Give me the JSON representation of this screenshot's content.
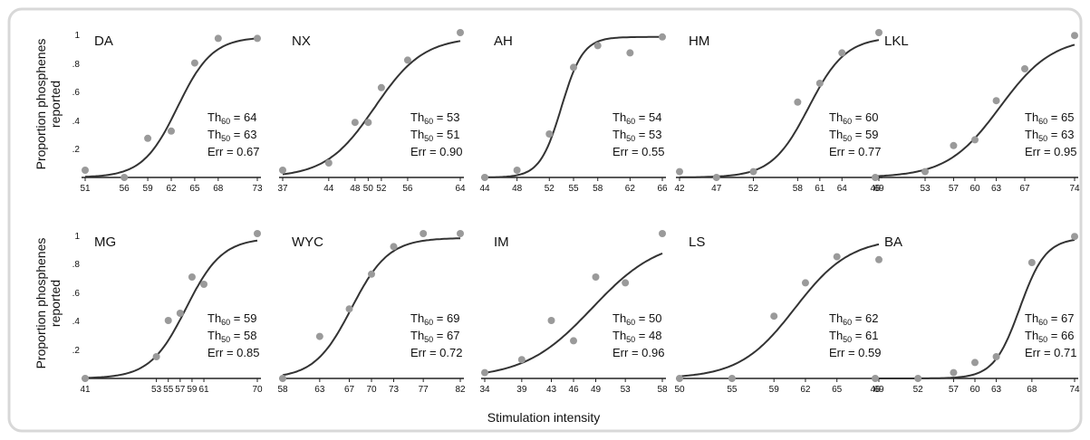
{
  "figure": {
    "y_axis_title_line1": "Proportion phosphenes",
    "y_axis_title_line2": "reported",
    "x_axis_title": "Stimulation intensity",
    "y_ticks": [
      "1",
      ".8",
      ".6",
      ".4",
      ".2"
    ],
    "colors": {
      "frame": "#d8d8d8",
      "curve": "#333333",
      "points": "#9a9a9a",
      "axis": "#222222"
    }
  },
  "chart_data": [
    {
      "type": "scatter",
      "subject": "DA",
      "xlim": [
        51,
        73
      ],
      "ylim": [
        0,
        1
      ],
      "x_ticks": [
        51,
        56,
        59,
        62,
        65,
        68,
        73
      ],
      "points": [
        [
          51,
          0.05
        ],
        [
          56,
          0.0
        ],
        [
          59,
          0.27
        ],
        [
          62,
          0.32
        ],
        [
          65,
          0.79
        ],
        [
          68,
          0.96
        ],
        [
          73,
          0.96
        ]
      ],
      "fit": {
        "midpoint": 62.8,
        "slope": 0.45
      },
      "th60": "64",
      "th50": "63",
      "err": "0.67"
    },
    {
      "type": "scatter",
      "subject": "NX",
      "xlim": [
        37,
        64
      ],
      "ylim": [
        0,
        1
      ],
      "x_ticks": [
        37,
        44,
        48,
        50,
        52,
        56,
        64
      ],
      "points": [
        [
          37,
          0.05
        ],
        [
          44,
          0.1
        ],
        [
          48,
          0.38
        ],
        [
          50,
          0.38
        ],
        [
          52,
          0.62
        ],
        [
          56,
          0.81
        ],
        [
          64,
          1.0
        ]
      ],
      "fit": {
        "midpoint": 51,
        "slope": 0.27
      },
      "th60": "53",
      "th50": "51",
      "err": "0.90"
    },
    {
      "type": "scatter",
      "subject": "AH",
      "xlim": [
        44,
        66
      ],
      "ylim": [
        0,
        1
      ],
      "x_ticks": [
        44,
        48,
        52,
        55,
        58,
        62,
        66
      ],
      "points": [
        [
          44,
          0.0
        ],
        [
          48,
          0.05
        ],
        [
          52,
          0.3
        ],
        [
          55,
          0.76
        ],
        [
          58,
          0.91
        ],
        [
          62,
          0.86
        ],
        [
          66,
          0.97
        ]
      ],
      "fit": {
        "midpoint": 53.5,
        "slope": 0.75
      },
      "th60": "54",
      "th50": "53",
      "err": "0.55"
    },
    {
      "type": "scatter",
      "subject": "HM",
      "xlim": [
        42,
        69
      ],
      "ylim": [
        0,
        1
      ],
      "x_ticks": [
        42,
        47,
        52,
        58,
        61,
        64,
        69
      ],
      "points": [
        [
          42,
          0.04
        ],
        [
          47,
          0.0
        ],
        [
          52,
          0.04
        ],
        [
          58,
          0.52
        ],
        [
          61,
          0.65
        ],
        [
          64,
          0.86
        ],
        [
          69,
          1.0
        ]
      ],
      "fit": {
        "midpoint": 59.5,
        "slope": 0.4
      },
      "th60": "60",
      "th50": "59",
      "err": "0.77"
    },
    {
      "type": "scatter",
      "subject": "LKL",
      "xlim": [
        46,
        74
      ],
      "ylim": [
        0,
        1
      ],
      "x_ticks": [
        46,
        53,
        57,
        60,
        63,
        67,
        74
      ],
      "points": [
        [
          46,
          0.0
        ],
        [
          53,
          0.04
        ],
        [
          57,
          0.22
        ],
        [
          60,
          0.26
        ],
        [
          63,
          0.53
        ],
        [
          67,
          0.75
        ],
        [
          74,
          0.98
        ]
      ],
      "fit": {
        "midpoint": 63.5,
        "slope": 0.27
      },
      "th60": "65",
      "th50": "63",
      "err": "0.95"
    },
    {
      "type": "scatter",
      "subject": "MG",
      "xlim": [
        41,
        70
      ],
      "ylim": [
        0,
        1
      ],
      "x_ticks": [
        41,
        53,
        55,
        57,
        59,
        61,
        70
      ],
      "points": [
        [
          41,
          0.0
        ],
        [
          53,
          0.15
        ],
        [
          55,
          0.4
        ],
        [
          57,
          0.45
        ],
        [
          59,
          0.7
        ],
        [
          61,
          0.65
        ],
        [
          70,
          1.0
        ]
      ],
      "fit": {
        "midpoint": 58,
        "slope": 0.33
      },
      "th60": "59",
      "th50": "58",
      "err": "0.85"
    },
    {
      "type": "scatter",
      "subject": "WYC",
      "xlim": [
        58,
        82
      ],
      "ylim": [
        0,
        1
      ],
      "x_ticks": [
        58,
        63,
        67,
        70,
        73,
        77,
        82
      ],
      "points": [
        [
          58,
          0.0
        ],
        [
          63,
          0.29
        ],
        [
          67,
          0.48
        ],
        [
          70,
          0.72
        ],
        [
          73,
          0.91
        ],
        [
          77,
          1.0
        ],
        [
          82,
          1.0
        ]
      ],
      "fit": {
        "midpoint": 67.3,
        "slope": 0.4
      },
      "th60": "69",
      "th50": "67",
      "err": "0.72"
    },
    {
      "type": "scatter",
      "subject": "IM",
      "xlim": [
        34,
        58
      ],
      "ylim": [
        0,
        1
      ],
      "x_ticks": [
        34,
        39,
        43,
        46,
        49,
        53,
        58
      ],
      "points": [
        [
          34,
          0.04
        ],
        [
          39,
          0.13
        ],
        [
          43,
          0.4
        ],
        [
          46,
          0.26
        ],
        [
          49,
          0.7
        ],
        [
          53,
          0.66
        ],
        [
          58,
          1.0
        ]
      ],
      "fit": {
        "midpoint": 48.5,
        "slope": 0.22
      },
      "th60": "50",
      "th50": "48",
      "err": "0.96"
    },
    {
      "type": "scatter",
      "subject": "LS",
      "xlim": [
        50,
        69
      ],
      "ylim": [
        0,
        1
      ],
      "x_ticks": [
        50,
        55,
        59,
        62,
        65,
        69
      ],
      "points": [
        [
          50,
          0.0
        ],
        [
          55,
          0.0
        ],
        [
          59,
          0.43
        ],
        [
          62,
          0.66
        ],
        [
          65,
          0.84
        ],
        [
          69,
          0.82
        ]
      ],
      "fit": {
        "midpoint": 61,
        "slope": 0.38
      },
      "th60": "62",
      "th50": "61",
      "err": "0.59"
    },
    {
      "type": "scatter",
      "subject": "BA",
      "xlim": [
        46,
        74
      ],
      "ylim": [
        0,
        1
      ],
      "x_ticks": [
        46,
        52,
        57,
        60,
        63,
        68,
        74
      ],
      "points": [
        [
          46,
          0.0
        ],
        [
          52,
          0.0
        ],
        [
          57,
          0.04
        ],
        [
          60,
          0.11
        ],
        [
          63,
          0.15
        ],
        [
          68,
          0.8
        ],
        [
          74,
          0.98
        ]
      ],
      "fit": {
        "midpoint": 66.3,
        "slope": 0.55
      },
      "th60": "67",
      "th50": "66",
      "err": "0.71"
    }
  ]
}
